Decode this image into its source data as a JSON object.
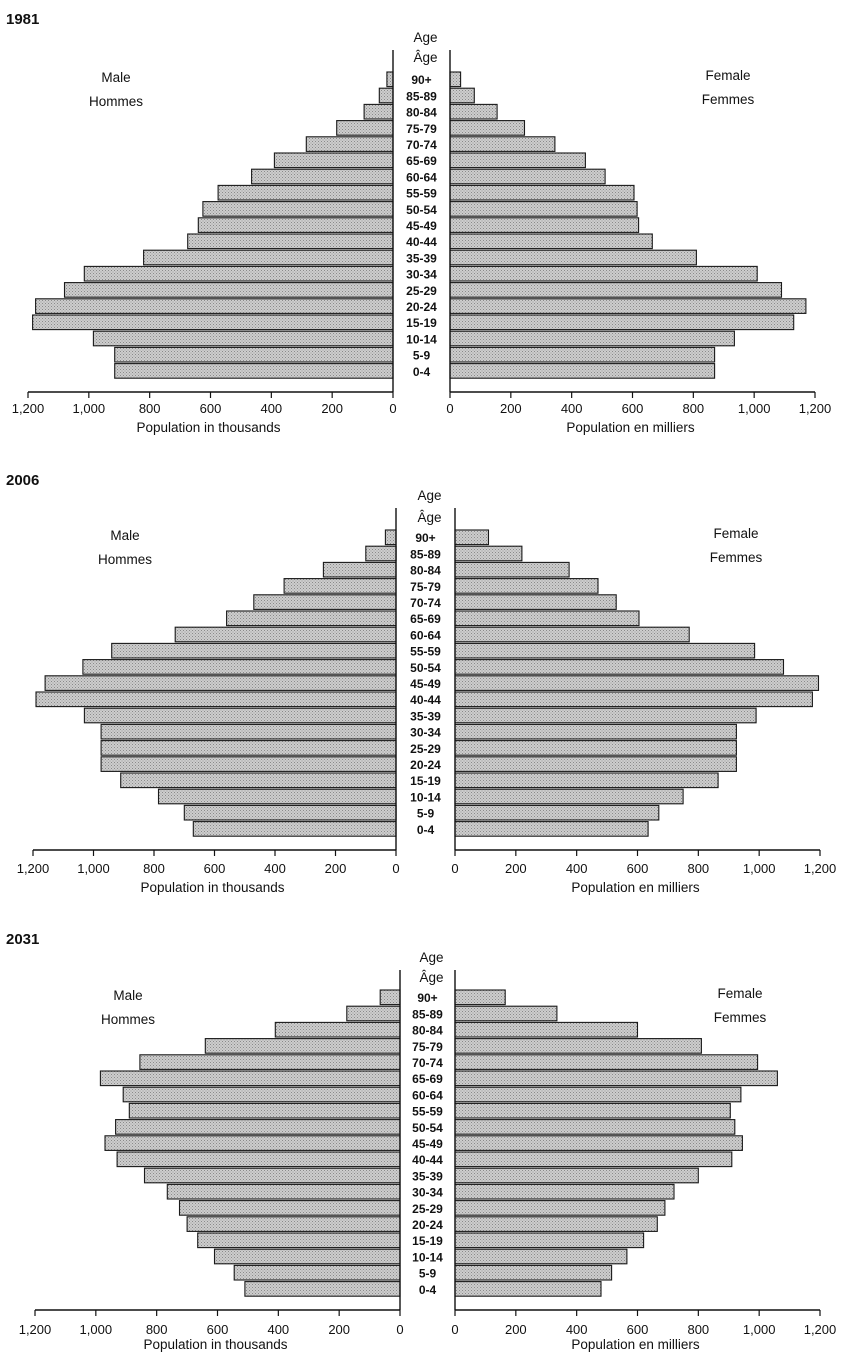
{
  "chart_data": [
    {
      "type": "bar",
      "title": "1981",
      "age_header": [
        "Age",
        "Âge"
      ],
      "categories": [
        "90+",
        "85-89",
        "80-84",
        "75-79",
        "70-74",
        "65-69",
        "60-64",
        "55-59",
        "50-54",
        "45-49",
        "40-44",
        "35-39",
        "30-34",
        "25-29",
        "20-24",
        "15-19",
        "10-14",
        "5-9",
        "0-4"
      ],
      "series": [
        {
          "name": "Male / Hommes",
          "values": [
            20,
            45,
            95,
            185,
            285,
            390,
            465,
            575,
            625,
            640,
            675,
            820,
            1015,
            1080,
            1175,
            1185,
            985,
            915,
            915
          ]
        },
        {
          "name": "Female / Femmes",
          "values": [
            35,
            80,
            155,
            245,
            345,
            445,
            510,
            605,
            615,
            620,
            665,
            810,
            1010,
            1090,
            1170,
            1130,
            935,
            870,
            870
          ]
        }
      ],
      "left_legend": [
        "Male",
        "Hommes"
      ],
      "right_legend": [
        "Female",
        "Femmes"
      ],
      "xlabel_left": "Population in thousands",
      "xlabel_right": "Population en milliers",
      "left_ticks": [
        "1,200",
        "1,000",
        "800",
        "600",
        "400",
        "200",
        "0"
      ],
      "right_ticks": [
        "0",
        "200",
        "400",
        "600",
        "800",
        "1,000",
        "1,200"
      ],
      "xlim": [
        0,
        1200
      ]
    },
    {
      "type": "bar",
      "title": "2006",
      "age_header": [
        "Age",
        "Âge"
      ],
      "categories": [
        "90+",
        "85-89",
        "80-84",
        "75-79",
        "70-74",
        "65-69",
        "60-64",
        "55-59",
        "50-54",
        "45-49",
        "40-44",
        "35-39",
        "30-34",
        "25-29",
        "20-24",
        "15-19",
        "10-14",
        "5-9",
        "0-4"
      ],
      "series": [
        {
          "name": "Male / Hommes",
          "values": [
            35,
            100,
            240,
            370,
            470,
            560,
            730,
            940,
            1035,
            1160,
            1190,
            1030,
            975,
            975,
            975,
            910,
            785,
            700,
            670
          ]
        },
        {
          "name": "Female / Femmes",
          "values": [
            110,
            220,
            375,
            470,
            530,
            605,
            770,
            985,
            1080,
            1195,
            1175,
            990,
            925,
            925,
            925,
            865,
            750,
            670,
            635
          ]
        }
      ],
      "left_legend": [
        "Male",
        "Hommes"
      ],
      "right_legend": [
        "Female",
        "Femmes"
      ],
      "xlabel_left": "Population in thousands",
      "xlabel_right": "Population en milliers",
      "left_ticks": [
        "1,200",
        "1,000",
        "800",
        "600",
        "400",
        "200",
        "0"
      ],
      "right_ticks": [
        "0",
        "200",
        "400",
        "600",
        "800",
        "1,000",
        "1,200"
      ],
      "xlim": [
        0,
        1200
      ]
    },
    {
      "type": "bar",
      "title": "2031",
      "age_header": [
        "Age",
        "Âge"
      ],
      "categories": [
        "90+",
        "85-89",
        "80-84",
        "75-79",
        "70-74",
        "65-69",
        "60-64",
        "55-59",
        "50-54",
        "45-49",
        "40-44",
        "35-39",
        "30-34",
        "25-29",
        "20-24",
        "15-19",
        "10-14",
        "5-9",
        "0-4"
      ],
      "series": [
        {
          "name": "Male / Hommes",
          "values": [
            65,
            175,
            410,
            640,
            855,
            985,
            910,
            890,
            935,
            970,
            930,
            840,
            765,
            725,
            700,
            665,
            610,
            545,
            510
          ]
        },
        {
          "name": "Female / Femmes",
          "values": [
            165,
            335,
            600,
            810,
            995,
            1060,
            940,
            905,
            920,
            945,
            910,
            800,
            720,
            690,
            665,
            620,
            565,
            515,
            480
          ]
        }
      ],
      "left_legend": [
        "Male",
        "Hommes"
      ],
      "right_legend": [
        "Female",
        "Femmes"
      ],
      "xlabel_left": "Population in thousands",
      "xlabel_right": "Population en milliers",
      "left_ticks": [
        "1,200",
        "1,000",
        "800",
        "600",
        "400",
        "200",
        "0"
      ],
      "right_ticks": [
        "0",
        "200",
        "400",
        "600",
        "800",
        "1,000",
        "1,200"
      ],
      "xlim": [
        0,
        1200
      ]
    }
  ],
  "colors": {
    "bar_fill": "#c4c4c4",
    "bar_stroke": "#1a1a1a",
    "axis": "#111111"
  }
}
